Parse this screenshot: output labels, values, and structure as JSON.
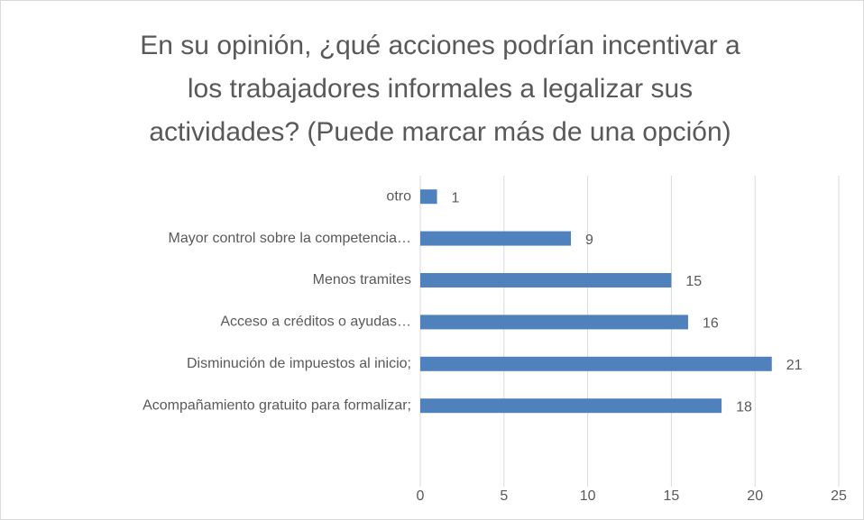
{
  "chart_data": {
    "type": "bar",
    "orientation": "horizontal",
    "title": [
      "En su opinión, ¿qué acciones podrían incentivar a",
      "los trabajadores informales a legalizar sus",
      "actividades? (Puede marcar más de una opción)"
    ],
    "categories": [
      "otro",
      "Mayor control sobre la competencia…",
      "Menos tramites",
      "Acceso a créditos o ayudas…",
      "Disminución de impuestos al inicio;",
      "Acompañamiento gratuito para formalizar;"
    ],
    "values": [
      1,
      9,
      15,
      16,
      21,
      18
    ],
    "color": "#4f81bd",
    "xlim": [
      0,
      25
    ],
    "xticks": [
      0,
      5,
      10,
      15,
      20,
      25
    ],
    "grid": true
  }
}
